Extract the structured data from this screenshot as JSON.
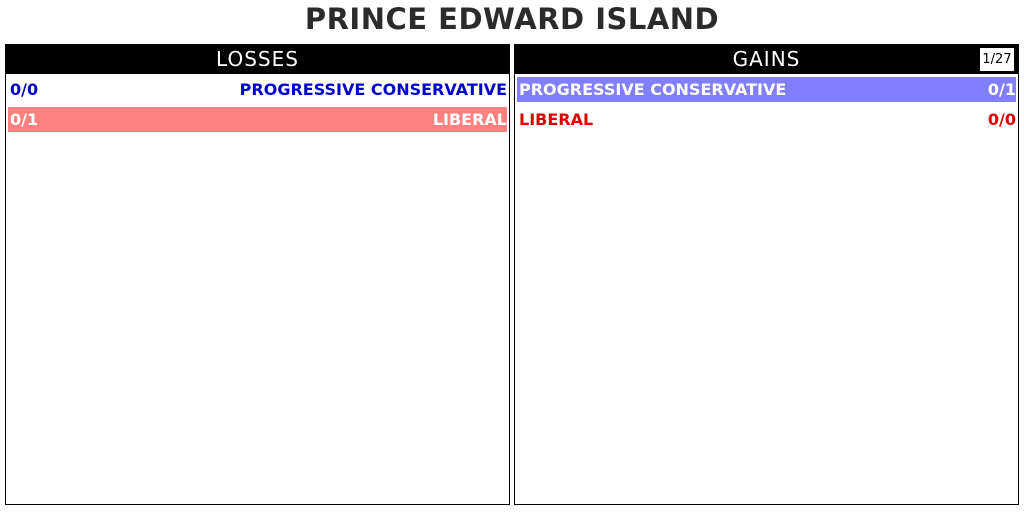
{
  "title": "PRINCE EDWARD ISLAND",
  "losses": {
    "header": "LOSSES",
    "rows": [
      {
        "count": "0/0",
        "party": "PROGRESSIVE CONSERVATIVE",
        "color": "#0000cc",
        "highlight": ""
      },
      {
        "count": "0/1",
        "party": "LIBERAL",
        "color": "#ffffff",
        "highlight": "#ff8080"
      }
    ]
  },
  "gains": {
    "header": "GAINS",
    "page_counter": "1/27",
    "rows": [
      {
        "party": "PROGRESSIVE CONSERVATIVE",
        "count": "0/1",
        "color": "#ffffff",
        "highlight": "#8080ff"
      },
      {
        "party": "LIBERAL",
        "count": "0/0",
        "color": "#dd0000",
        "highlight": ""
      }
    ]
  }
}
